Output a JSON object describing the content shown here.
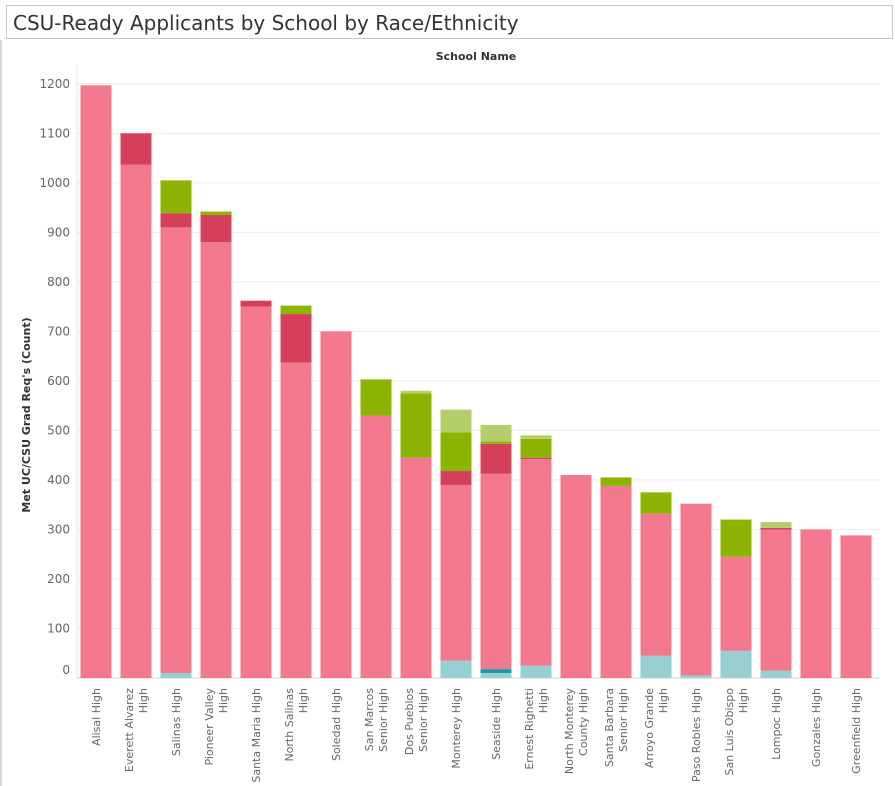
{
  "page": {
    "title": "CSU-Ready Applicants by School by Race/Ethnicity"
  },
  "chart_data": {
    "type": "bar",
    "stacked": true,
    "column_header": "School Name",
    "ylabel": "Met UC/CSU Grad Req's (Count)",
    "xlabel": "",
    "ylim": [
      0,
      1240
    ],
    "yticks": [
      0,
      100,
      200,
      300,
      400,
      500,
      600,
      700,
      800,
      900,
      1000,
      1100,
      1200
    ],
    "grid": true,
    "legend": "none",
    "categories": [
      [
        "Alisal High"
      ],
      [
        "Everett Alvarez",
        "High"
      ],
      [
        "Salinas High"
      ],
      [
        "Pioneer Valley",
        "High"
      ],
      [
        "Santa Maria High"
      ],
      [
        "North Salinas",
        "High"
      ],
      [
        "Soledad High"
      ],
      [
        "San Marcos",
        "Senior High"
      ],
      [
        "Dos Pueblos",
        "Senior High"
      ],
      [
        "Monterey High"
      ],
      [
        "Seaside High"
      ],
      [
        "Ernest Righetti",
        "High"
      ],
      [
        "North Monterey",
        "County High"
      ],
      [
        "Santa Barbara",
        "Senior High"
      ],
      [
        "Arroyo Grande",
        "High"
      ],
      [
        "Paso Robles High"
      ],
      [
        "San Luis Obispo",
        "High"
      ],
      [
        "Lompoc High"
      ],
      [
        "Gonzales High"
      ],
      [
        "Greenfield High"
      ]
    ],
    "series": [
      {
        "color": "#96D0D0",
        "values": [
          0,
          0,
          10,
          0,
          0,
          0,
          0,
          0,
          0,
          35,
          10,
          25,
          0,
          0,
          45,
          5,
          55,
          15,
          0,
          0
        ]
      },
      {
        "color": "#1E96B4",
        "values": [
          0,
          0,
          0,
          0,
          0,
          0,
          0,
          0,
          0,
          0,
          8,
          0,
          0,
          0,
          0,
          0,
          0,
          0,
          0,
          0
        ]
      },
      {
        "color": "#F1788D",
        "values": [
          1197,
          1037,
          900,
          880,
          750,
          637,
          700,
          530,
          445,
          355,
          395,
          417,
          410,
          388,
          287,
          347,
          190,
          285,
          300,
          288
        ]
      },
      {
        "color": "#D4405A",
        "values": [
          0,
          63,
          28,
          55,
          12,
          98,
          0,
          0,
          0,
          28,
          60,
          3,
          0,
          0,
          0,
          0,
          0,
          3,
          0,
          0
        ]
      },
      {
        "color": "#8CB400",
        "values": [
          0,
          0,
          67,
          7,
          0,
          17,
          0,
          73,
          130,
          78,
          5,
          38,
          0,
          17,
          43,
          0,
          75,
          0,
          0,
          0
        ]
      },
      {
        "color": "#B6CE69",
        "values": [
          0,
          0,
          0,
          0,
          0,
          0,
          0,
          0,
          5,
          46,
          33,
          7,
          0,
          0,
          0,
          0,
          0,
          12,
          0,
          0
        ]
      }
    ]
  }
}
